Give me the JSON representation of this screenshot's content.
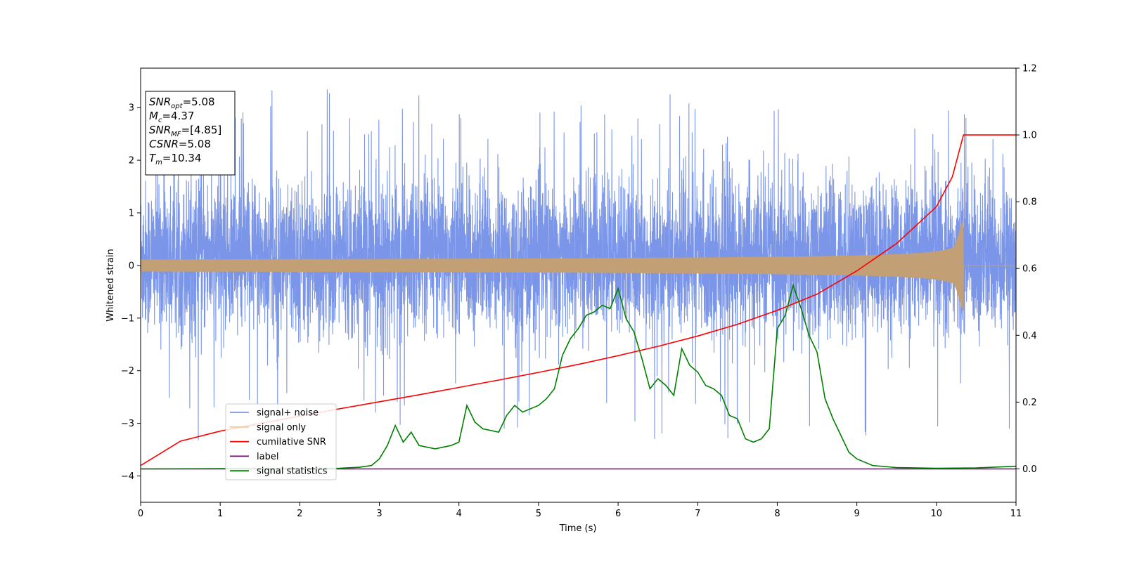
{
  "chart_data": {
    "type": "line",
    "xlabel": "Time (s)",
    "ylabel": "Whitened strain",
    "xlim": [
      0,
      11
    ],
    "ylim_left": [
      -4.5,
      3.75
    ],
    "ylim_right": [
      -0.1,
      1.2
    ],
    "x_ticks": [
      "0",
      "1",
      "2",
      "3",
      "4",
      "5",
      "6",
      "7",
      "8",
      "9",
      "10",
      "11"
    ],
    "y_ticks_left": [
      "−4",
      "−3",
      "−2",
      "−1",
      "0",
      "1",
      "2",
      "3"
    ],
    "y_ticks_right": [
      "0.0",
      "0.2",
      "0.4",
      "0.6",
      "0.8",
      "1.0",
      "1.2"
    ],
    "grid": false,
    "legend_position": "lower-left",
    "legend": [
      {
        "label": "signal+ noise",
        "color": "#7b96e8"
      },
      {
        "label": "signal only",
        "color": "#f5c98e"
      },
      {
        "label": "cumilative SNR",
        "color": "#ff0000"
      },
      {
        "label": "label",
        "color": "#800080"
      },
      {
        "label": "signal statistics",
        "color": "#008000"
      }
    ],
    "annotation": {
      "lines": [
        {
          "symbol": "SNR",
          "sub": "opt",
          "value": "=5.08"
        },
        {
          "symbol": "M",
          "sub": "c",
          "value": "=4.37"
        },
        {
          "symbol": "SNR",
          "sub": "MF",
          "value": "=[4.85]"
        },
        {
          "symbol": "CSNR",
          "sub": "",
          "value": "=5.08"
        },
        {
          "symbol": "T",
          "sub": "m",
          "value": "=10.34"
        }
      ]
    },
    "series": [
      {
        "name": "signal+ noise",
        "axis": "left",
        "style": "dense-noise",
        "x_range": [
          0,
          11
        ],
        "typical_range": [
          -1.7,
          2.0
        ],
        "extreme_range": [
          -4.15,
          3.35
        ]
      },
      {
        "name": "signal only",
        "axis": "left",
        "style": "chirp",
        "x_range": [
          0,
          11
        ],
        "merger_time": 10.34,
        "peak_amplitude": 0.5
      },
      {
        "name": "cumilative SNR",
        "axis": "right",
        "x": [
          0,
          0.5,
          1,
          1.5,
          2,
          2.5,
          3,
          3.5,
          4,
          4.5,
          5,
          5.5,
          6,
          6.5,
          7,
          7.5,
          8,
          8.5,
          9,
          9.5,
          10,
          10.2,
          10.34,
          11
        ],
        "values": [
          0.01,
          0.083,
          0.113,
          0.136,
          0.158,
          0.18,
          0.201,
          0.222,
          0.244,
          0.266,
          0.289,
          0.313,
          0.339,
          0.367,
          0.398,
          0.433,
          0.475,
          0.523,
          0.593,
          0.675,
          0.785,
          0.875,
          1.0,
          1.0
        ]
      },
      {
        "name": "label",
        "axis": "right",
        "x": [
          0,
          11
        ],
        "values": [
          0.0,
          0.0
        ]
      },
      {
        "name": "signal statistics",
        "axis": "right",
        "x": [
          0,
          2.5,
          2.75,
          2.9,
          3.0,
          3.1,
          3.2,
          3.3,
          3.4,
          3.5,
          3.7,
          3.9,
          4.0,
          4.1,
          4.2,
          4.3,
          4.5,
          4.6,
          4.7,
          4.8,
          5.0,
          5.1,
          5.2,
          5.3,
          5.4,
          5.5,
          5.6,
          5.7,
          5.8,
          5.9,
          6.0,
          6.1,
          6.2,
          6.3,
          6.4,
          6.5,
          6.6,
          6.7,
          6.8,
          6.9,
          7.0,
          7.1,
          7.2,
          7.3,
          7.4,
          7.5,
          7.6,
          7.7,
          7.8,
          7.9,
          8.0,
          8.1,
          8.2,
          8.3,
          8.4,
          8.5,
          8.6,
          8.7,
          8.8,
          8.9,
          9.0,
          9.2,
          9.5,
          10.0,
          10.5,
          11.0
        ],
        "values": [
          0.0,
          0.002,
          0.005,
          0.01,
          0.03,
          0.07,
          0.13,
          0.08,
          0.11,
          0.07,
          0.06,
          0.07,
          0.08,
          0.19,
          0.14,
          0.12,
          0.11,
          0.16,
          0.19,
          0.17,
          0.19,
          0.21,
          0.24,
          0.34,
          0.39,
          0.42,
          0.46,
          0.47,
          0.49,
          0.48,
          0.54,
          0.45,
          0.41,
          0.33,
          0.24,
          0.27,
          0.25,
          0.22,
          0.36,
          0.31,
          0.29,
          0.25,
          0.24,
          0.22,
          0.16,
          0.15,
          0.09,
          0.08,
          0.09,
          0.12,
          0.42,
          0.46,
          0.55,
          0.48,
          0.4,
          0.35,
          0.21,
          0.15,
          0.1,
          0.05,
          0.03,
          0.01,
          0.004,
          0.002,
          0.003,
          0.008
        ]
      }
    ]
  }
}
